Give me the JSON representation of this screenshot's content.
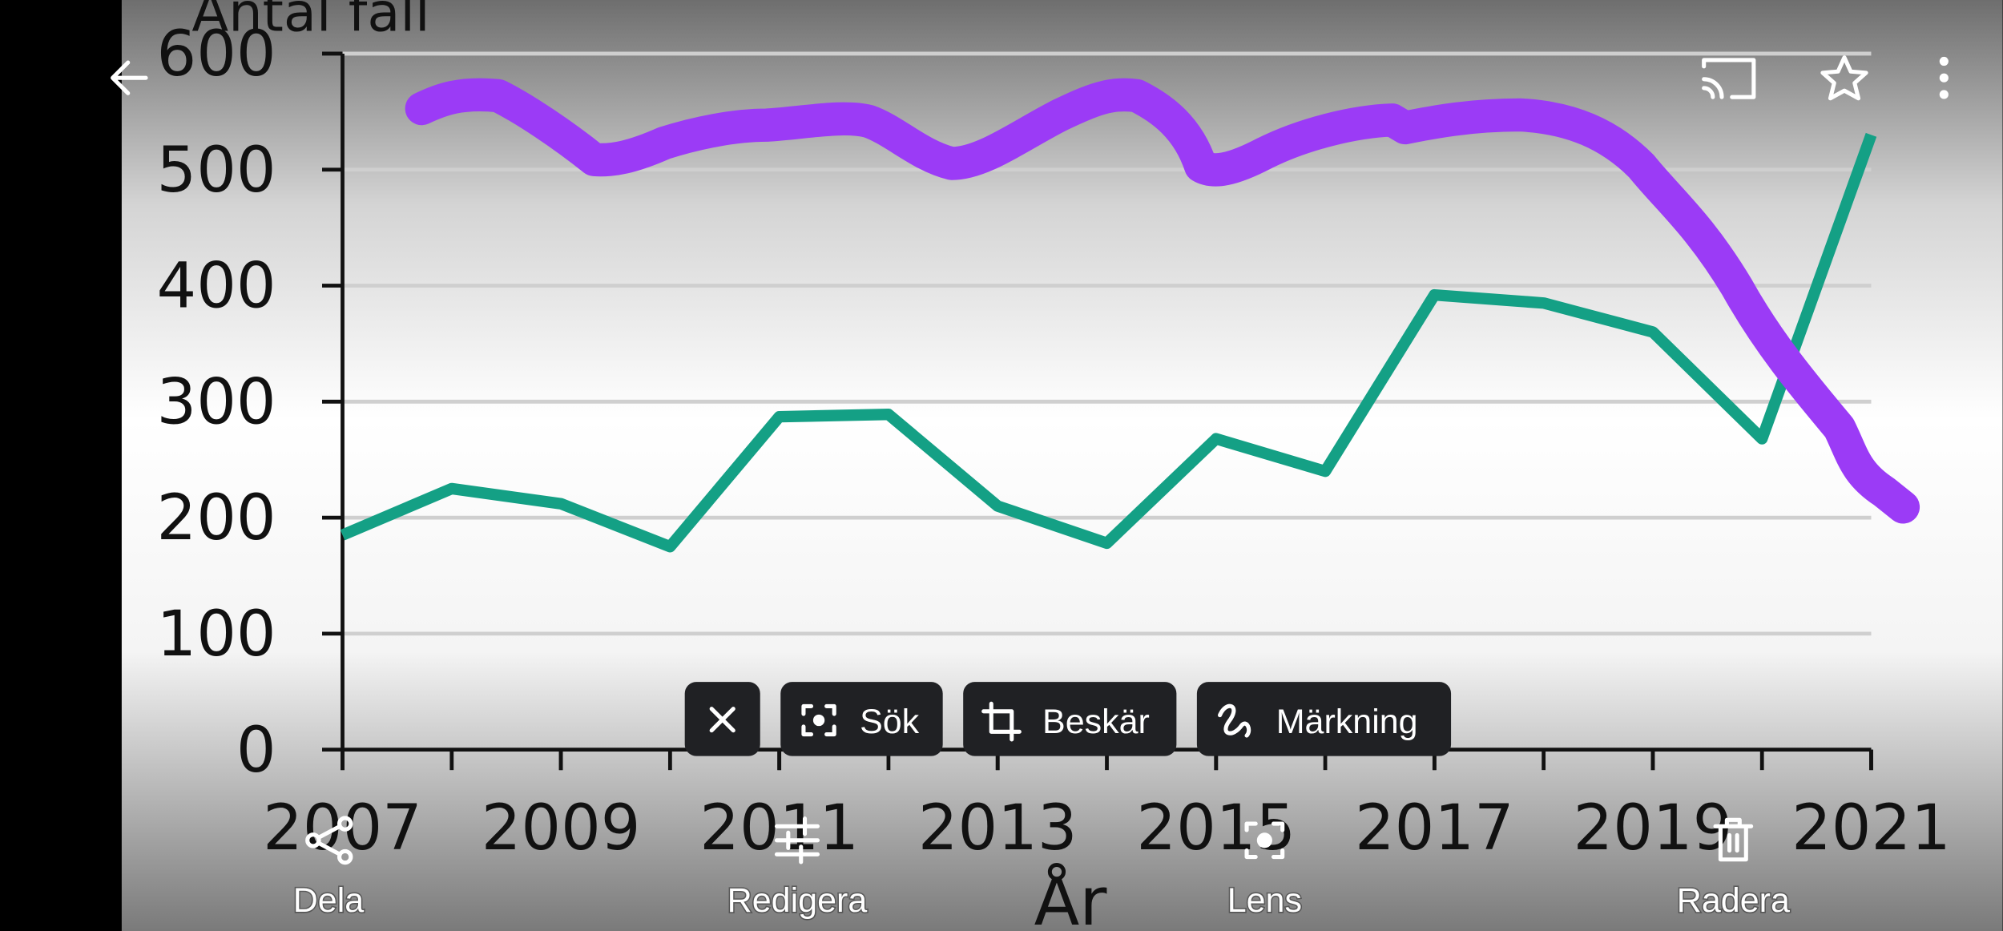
{
  "photo": {
    "chart": {
      "type": "line",
      "y_title": "Antal fall",
      "x_title": "År",
      "x": [
        2007,
        2008,
        2009,
        2010,
        2011,
        2012,
        2013,
        2014,
        2015,
        2016,
        2017,
        2018,
        2019,
        2020,
        2021
      ],
      "series": [
        {
          "color": "#14a085",
          "values": [
            185,
            225,
            212,
            175,
            287,
            289,
            210,
            178,
            268,
            240,
            392,
            385,
            360,
            268,
            530
          ]
        }
      ],
      "xlim": [
        2007,
        2021
      ],
      "xticks": [
        2007,
        2009,
        2011,
        2013,
        2015,
        2017,
        2019,
        2021
      ],
      "ylim": [
        0,
        600
      ],
      "yticks": [
        0,
        100,
        200,
        300,
        400,
        500,
        600
      ],
      "grid": true
    }
  },
  "chips": [
    "Sök",
    "Beskär",
    "Märkning"
  ],
  "bottom_actions": [
    "Dela",
    "Redigera",
    "Lens",
    "Radera"
  ]
}
